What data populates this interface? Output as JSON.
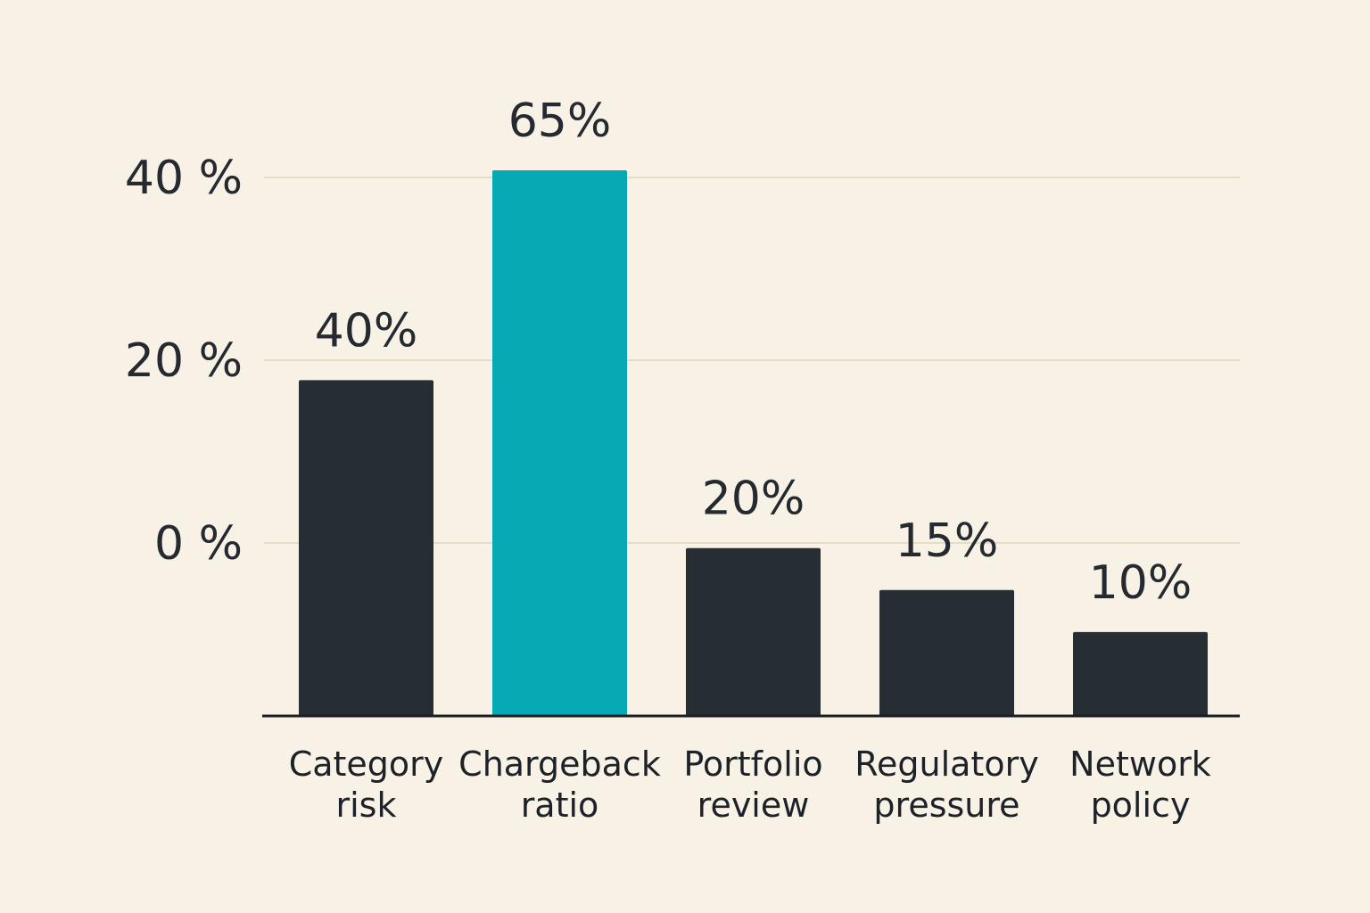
{
  "chart_data": {
    "type": "bar",
    "title": "",
    "xlabel": "",
    "ylabel": "",
    "categories": [
      [
        "Category",
        "risk"
      ],
      [
        "Chargeback",
        "ratio"
      ],
      [
        "Portfolio",
        "review"
      ],
      [
        "Regulatory",
        "pressure"
      ],
      [
        "Network",
        "policy"
      ]
    ],
    "values": [
      40,
      65,
      20,
      15,
      10
    ],
    "data_labels": [
      "40%",
      "65%",
      "20%",
      "15%",
      "10%"
    ],
    "highlight_index": 1,
    "y_ticks": [
      {
        "value": 0,
        "label": "0 %"
      },
      {
        "value": 20,
        "label": "20 %"
      },
      {
        "value": 40,
        "label": "40 %"
      }
    ],
    "grid": true,
    "legend": "none",
    "colors": {
      "background": "#f7f1e6",
      "bar": "#262d33",
      "highlight": "#07a9b4",
      "gridline": "#e6dcc6",
      "axis": "#1b1f24",
      "text": "#242a30"
    }
  }
}
